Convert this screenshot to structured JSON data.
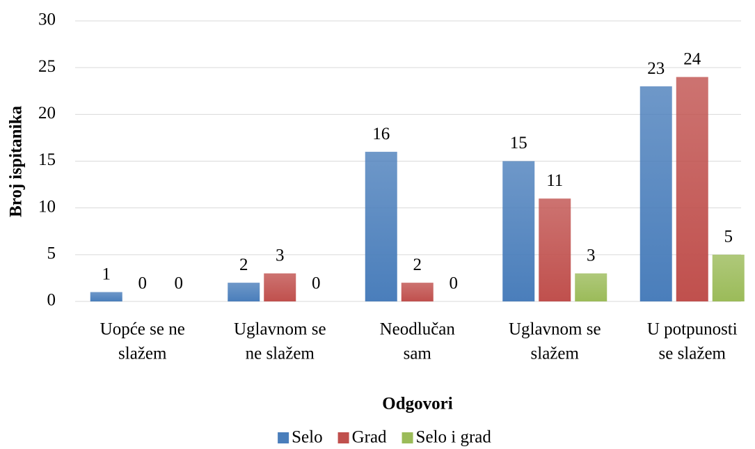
{
  "chart_data": {
    "type": "bar",
    "categories": [
      [
        "Uopće se ne",
        "slažem"
      ],
      [
        "Uglavnom se",
        "ne slažem"
      ],
      [
        "Neodlučan",
        "sam"
      ],
      [
        "Uglavnom se",
        "slažem"
      ],
      [
        "U potpunosti",
        "se slažem"
      ]
    ],
    "series": [
      {
        "name": "Selo",
        "color": "#4a7ebb",
        "values": [
          1,
          2,
          16,
          15,
          23
        ]
      },
      {
        "name": "Grad",
        "color": "#c0504d",
        "values": [
          0,
          3,
          2,
          11,
          24
        ]
      },
      {
        "name": "Selo i grad",
        "color": "#9bbb59",
        "values": [
          0,
          0,
          0,
          3,
          5
        ]
      }
    ],
    "x_label": "Odgovori",
    "y_label": "Broj ispitanika",
    "ylim": [
      0,
      30
    ],
    "yticks": [
      0,
      5,
      10,
      15,
      20,
      25,
      30
    ],
    "grid": true,
    "legend": "bottom"
  }
}
